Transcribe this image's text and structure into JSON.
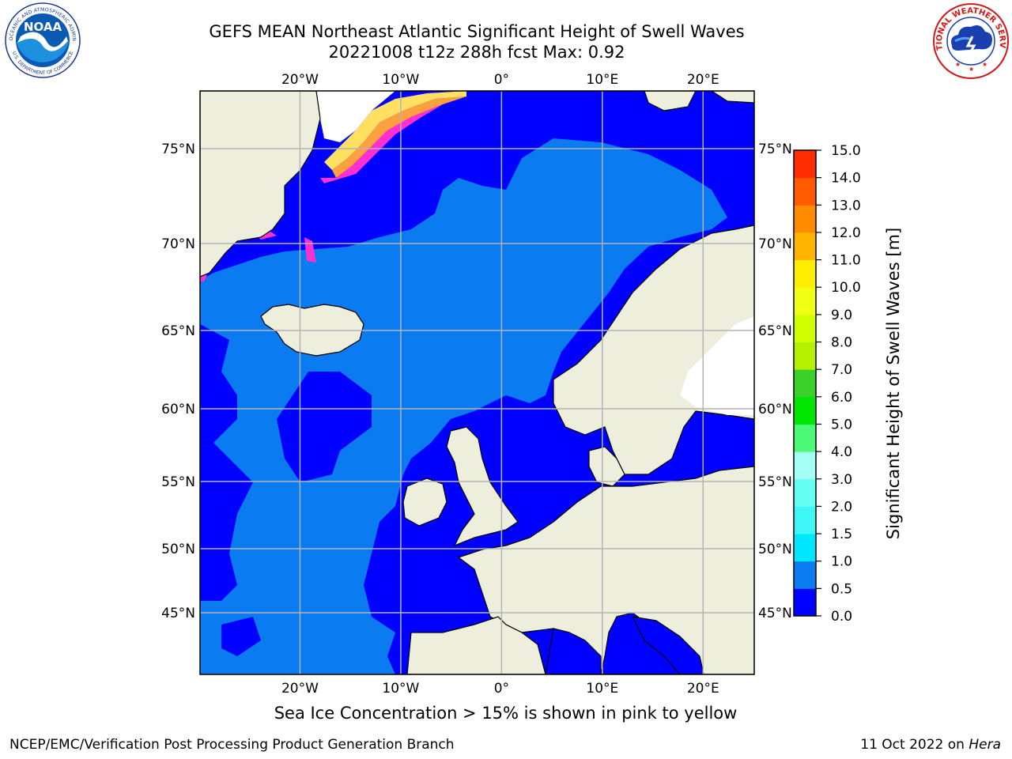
{
  "title": {
    "line1": "GEFS MEAN Northeast Atlantic Significant Height of Swell Waves",
    "line2": "20221008 t12z 288h fcst   Max: 0.92"
  },
  "map": {
    "extent": {
      "lon_min": -30,
      "lon_max": 25,
      "lat_min": 41,
      "lat_max": 78
    },
    "lon_ticks": [
      {
        "value": -20,
        "label": "20°W"
      },
      {
        "value": -10,
        "label": "10°W"
      },
      {
        "value": 0,
        "label": "0°"
      },
      {
        "value": 10,
        "label": "10°E"
      },
      {
        "value": 20,
        "label": "20°E"
      }
    ],
    "lat_ticks": [
      {
        "value": 75,
        "label": "75°N"
      },
      {
        "value": 70,
        "label": "70°N"
      },
      {
        "value": 65,
        "label": "65°N"
      },
      {
        "value": 60,
        "label": "60°N"
      },
      {
        "value": 55,
        "label": "55°N"
      },
      {
        "value": 50,
        "label": "50°N"
      },
      {
        "value": 45,
        "label": "45°N"
      }
    ],
    "colors": {
      "ocean_low": "#0000ff",
      "ocean_mid": "#0a7bf0",
      "land": "#eeeedd",
      "ice_white": "#ffffff",
      "ice_pink": "#ff2fd0",
      "ice_orange": "#ffa040",
      "ice_yellow": "#ffe060",
      "grid": "#b4b4b4"
    }
  },
  "colorbar": {
    "label": "Significant Height of Swell Waves [m]",
    "ticks": [
      "0.0",
      "0.5",
      "1.0",
      "1.5",
      "2.0",
      "3.0",
      "4.0",
      "5.0",
      "6.0",
      "7.0",
      "8.0",
      "9.0",
      "10.0",
      "11.0",
      "12.0",
      "13.0",
      "14.0",
      "15.0"
    ],
    "colors": [
      "#0000ff",
      "#0a7bf0",
      "#00e6ff",
      "#3ff6f6",
      "#64fff2",
      "#a5fff5",
      "#4cfa78",
      "#00e600",
      "#3ad12a",
      "#b4f000",
      "#d2ff00",
      "#f0ff14",
      "#ffee00",
      "#ffb400",
      "#ff8c00",
      "#ff5a00",
      "#ff2d00",
      "#ff0000"
    ]
  },
  "logos": {
    "noaa_text": "NOAA",
    "noaa_ring": "NATIONAL OCEANIC AND ATMOSPHERIC ADMINISTRATION",
    "noaa_ring_bottom": "U.S. DEPARTMENT OF COMMERCE",
    "nws_ring": "NATIONAL WEATHER SERVICE"
  },
  "footer": {
    "note": "Sea Ice Concentration > 15% is shown in pink to yellow",
    "credit": "NCEP/EMC/Verification Post Processing Product Generation Branch",
    "date": "11 Oct 2022 on",
    "machine": "Hera"
  }
}
